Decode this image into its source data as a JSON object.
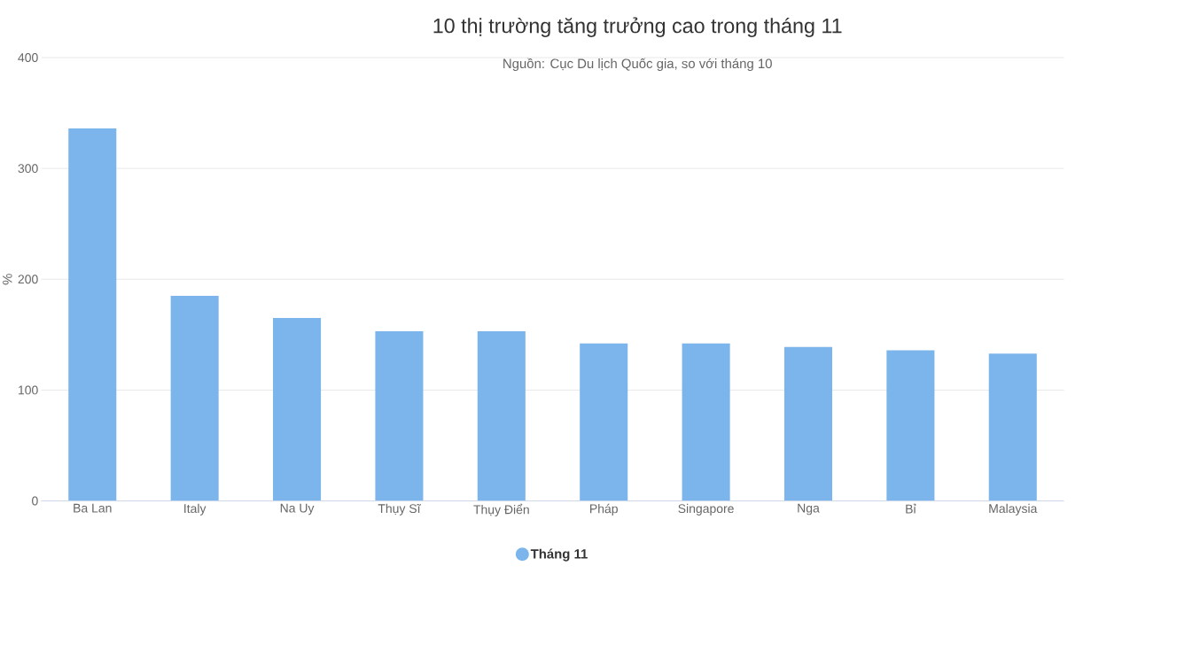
{
  "chart_data": {
    "type": "bar",
    "title": "10 thị trường tăng trưởng cao trong tháng 11",
    "subtitle": "Nguồn: Cục Du lịch Quốc gia, so với tháng 10",
    "ylabel": "%",
    "categories": [
      "Ba Lan",
      "Italy",
      "Na Uy",
      "Thụy Sĩ",
      "Thụy Điển",
      "Pháp",
      "Singapore",
      "Nga",
      "Bỉ",
      "Malaysia"
    ],
    "series": [
      {
        "name": "Tháng 11",
        "color": "#7cb5ec",
        "values": [
          336,
          185,
          165,
          153,
          153,
          142,
          142,
          139,
          136,
          133
        ]
      }
    ],
    "ylim": [
      0,
      400
    ],
    "yticks": [
      0,
      100,
      200,
      300,
      400
    ],
    "grid": "y",
    "legend": "bottom"
  }
}
